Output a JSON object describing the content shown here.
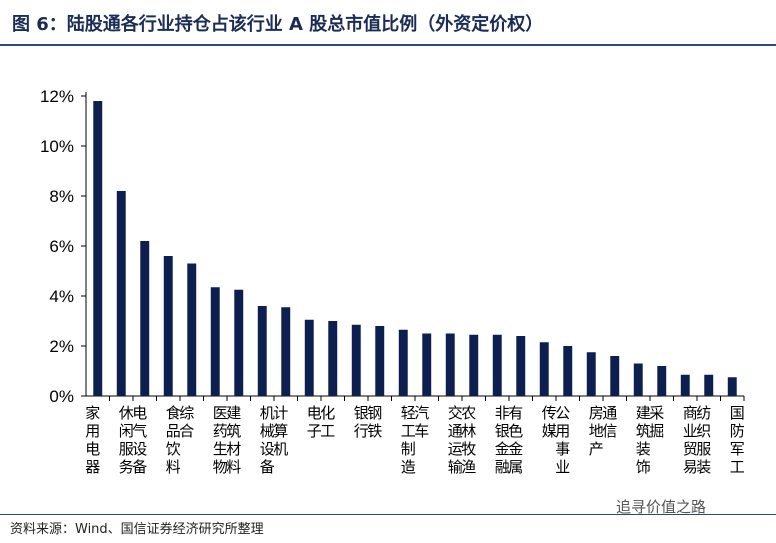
{
  "figure": {
    "title": "图 6：陆股通各行业持仓占该行业 A 股总市值比例（外资定价权）",
    "source": "资料来源：Wind、国信证券经济研究所整理",
    "watermark": "追寻价值之路"
  },
  "colors": {
    "bar": "#0c1f4f",
    "axis": "#000000",
    "title": "#1a2c55",
    "rule": "#2e4a7a"
  },
  "chart_data": {
    "type": "bar",
    "title": "",
    "xlabel": "",
    "ylabel": "",
    "ylim": [
      0,
      12
    ],
    "yticks": [
      0,
      2,
      4,
      6,
      8,
      10,
      12
    ],
    "ytick_labels": [
      "0%",
      "2%",
      "4%",
      "6%",
      "8%",
      "10%",
      "12%"
    ],
    "grid": false,
    "legend": "none",
    "categories": [
      "家用电器",
      "休闲服务",
      "电气设备",
      "食品饮料",
      "综合",
      "医药生物",
      "建筑材料",
      "机械设备",
      "计算机",
      "电子",
      "化工",
      "银行",
      "钢铁",
      "轻工制造",
      "汽车",
      "交通运输",
      "农林牧渔",
      "非银金融",
      "有色金属",
      "传媒",
      "公用事业",
      "房地产",
      "通信",
      "建筑装饰",
      "采掘",
      "商业贸易",
      "纺织服装",
      "国防军工"
    ],
    "values": [
      11.8,
      8.2,
      6.2,
      5.6,
      5.3,
      4.35,
      4.25,
      3.6,
      3.55,
      3.05,
      3.0,
      2.85,
      2.8,
      2.65,
      2.5,
      2.5,
      2.45,
      2.45,
      2.4,
      2.15,
      2.0,
      1.75,
      1.6,
      1.3,
      1.2,
      0.85,
      0.85,
      0.75
    ]
  }
}
